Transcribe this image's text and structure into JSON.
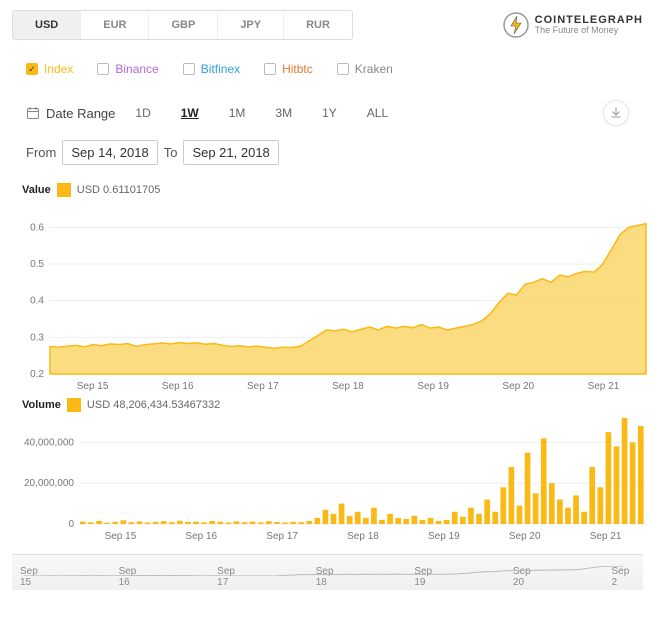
{
  "logo": {
    "title": "COINTELEGRAPH",
    "subtitle": "The Future of Money"
  },
  "currencies": {
    "items": [
      "USD",
      "EUR",
      "GBP",
      "JPY",
      "RUR"
    ],
    "active": "USD"
  },
  "exchanges": [
    {
      "label": "Index",
      "color": "#fab915",
      "checked": true
    },
    {
      "label": "Binance",
      "color": "#b26bd6",
      "checked": false
    },
    {
      "label": "Bitfinex",
      "color": "#2ea3d8",
      "checked": false
    },
    {
      "label": "Hitbtc",
      "color": "#e07b3a",
      "checked": false
    },
    {
      "label": "Kraken",
      "color": "#888888",
      "checked": false
    }
  ],
  "date_range": {
    "label": "Date Range",
    "options": [
      "1D",
      "1W",
      "1M",
      "3M",
      "1Y",
      "ALL"
    ],
    "active": "1W",
    "from_label": "From",
    "from": "Sep 14, 2018",
    "to_label": "To",
    "to": "Sep 21, 2018"
  },
  "price_chart": {
    "type": "area",
    "legend_title": "Value",
    "legend_series": "USD",
    "legend_value": "0.61101705",
    "ylim": [
      0.2,
      0.65
    ],
    "yticks": [
      0.2,
      0.3,
      0.4,
      0.5,
      0.6
    ],
    "xticks": [
      "Sep 15",
      "Sep 16",
      "Sep 17",
      "Sep 18",
      "Sep 19",
      "Sep 20",
      "Sep 21"
    ],
    "series_color": "#fab915",
    "fill_color": "#fcd66a",
    "grid_color": "#eeeeee",
    "background": "#ffffff",
    "data": [
      0.275,
      0.273,
      0.276,
      0.278,
      0.274,
      0.28,
      0.277,
      0.282,
      0.28,
      0.283,
      0.275,
      0.28,
      0.282,
      0.285,
      0.282,
      0.286,
      0.283,
      0.285,
      0.281,
      0.283,
      0.278,
      0.275,
      0.277,
      0.274,
      0.276,
      0.273,
      0.27,
      0.273,
      0.272,
      0.276,
      0.29,
      0.305,
      0.32,
      0.318,
      0.322,
      0.315,
      0.322,
      0.328,
      0.32,
      0.33,
      0.325,
      0.33,
      0.326,
      0.335,
      0.325,
      0.328,
      0.32,
      0.325,
      0.33,
      0.335,
      0.345,
      0.365,
      0.395,
      0.42,
      0.415,
      0.445,
      0.45,
      0.46,
      0.45,
      0.47,
      0.465,
      0.475,
      0.48,
      0.478,
      0.5,
      0.54,
      0.58,
      0.6,
      0.605,
      0.61
    ]
  },
  "volume_chart": {
    "type": "bar",
    "legend_title": "Volume",
    "legend_series": "USD",
    "legend_value": "48,206,434.53467332",
    "ylim": [
      0,
      50000000
    ],
    "yticks": [
      0,
      20000000,
      40000000
    ],
    "ytick_labels": [
      "0",
      "20,000,000",
      "40,000,000"
    ],
    "xticks": [
      "Sep 15",
      "Sep 16",
      "Sep 17",
      "Sep 18",
      "Sep 19",
      "Sep 20",
      "Sep 21"
    ],
    "bar_color": "#fab915",
    "grid_color": "#eeeeee",
    "data": [
      1.2,
      0.8,
      1.5,
      0.6,
      1.0,
      1.8,
      0.9,
      1.3,
      0.7,
      1.1,
      1.4,
      0.9,
      1.6,
      1.0,
      1.2,
      0.8,
      1.5,
      1.1,
      0.7,
      1.3,
      0.9,
      1.2,
      0.8,
      1.4,
      1.0,
      0.7,
      1.1,
      0.9,
      1.5,
      3.0,
      7.0,
      5.0,
      10.0,
      4.0,
      6.0,
      3.0,
      8.0,
      2.0,
      5.0,
      3.0,
      2.5,
      4.0,
      2.0,
      3.0,
      1.5,
      2.0,
      6.0,
      3.5,
      8.0,
      5.0,
      12.0,
      6.0,
      18.0,
      28.0,
      9.0,
      35.0,
      15.0,
      42.0,
      20.0,
      12.0,
      8.0,
      14.0,
      6.0,
      28.0,
      18.0,
      45.0,
      38.0,
      52.0,
      40.0,
      48.0
    ]
  },
  "navigator": {
    "labels": [
      "Sep 15",
      "Sep 16",
      "Sep 17",
      "Sep 18",
      "Sep 19",
      "Sep 20",
      "Sep 2"
    ]
  }
}
